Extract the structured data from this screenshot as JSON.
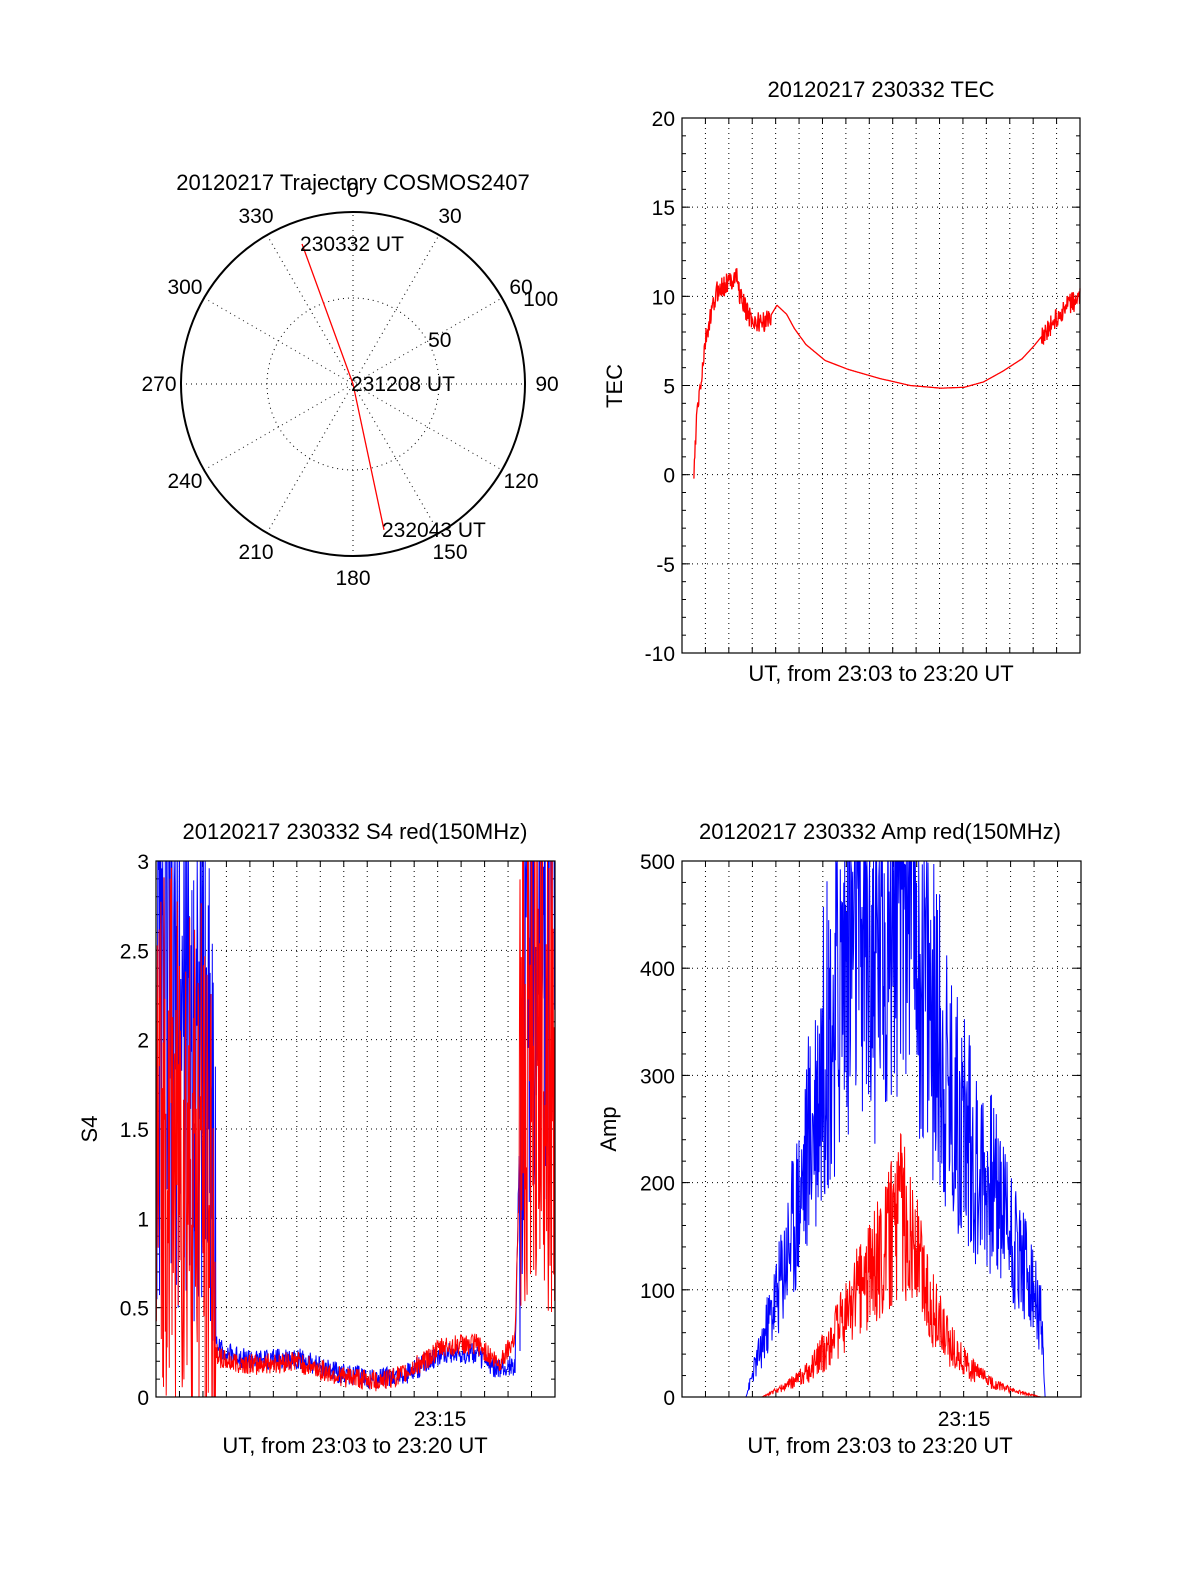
{
  "chart_data": [
    {
      "type": "polar",
      "title": "20120217 Trajectory COSMOS2407",
      "angle_labels": [
        "0",
        "30",
        "60",
        "90",
        "120",
        "150",
        "180",
        "210",
        "240",
        "270",
        "300",
        "330"
      ],
      "radius_labels": [
        "50",
        "100"
      ],
      "rlim": [
        0,
        100
      ],
      "grid": true,
      "series": [
        {
          "color": "#ff0000",
          "points": [
            {
              "azimuth": 340,
              "elevation": 12
            },
            {
              "azimuth": 90,
              "elevation": 90
            },
            {
              "azimuth": 168,
              "elevation": 12
            }
          ]
        }
      ],
      "annotations": [
        {
          "text": "230332 UT",
          "azimuth": 340,
          "elevation": 12
        },
        {
          "text": "231208 UT",
          "azimuth": 90,
          "elevation": 90
        },
        {
          "text": "232043 UT",
          "azimuth": 168,
          "elevation": 12
        }
      ]
    },
    {
      "type": "line",
      "title": "20120217 230332 TEC",
      "xlabel": "UT, from 23:03 to 23:20 UT",
      "ylabel": "TEC",
      "ylim": [
        -10,
        20
      ],
      "yticks": [
        "-10",
        "-5",
        "0",
        "5",
        "10",
        "15",
        "20"
      ],
      "grid": true,
      "series": [
        {
          "color": "#ff0000",
          "x": [
            0.0,
            0.008,
            0.02,
            0.03,
            0.045,
            0.06,
            0.075,
            0.09,
            0.11,
            0.12,
            0.14,
            0.16,
            0.19,
            0.215,
            0.24,
            0.26,
            0.29,
            0.34,
            0.4,
            0.48,
            0.56,
            0.64,
            0.7,
            0.75,
            0.8,
            0.85,
            0.88,
            0.91,
            0.94,
            0.97,
            1.0
          ],
          "y": [
            0.0,
            3.5,
            5.5,
            7.5,
            9.0,
            10.3,
            10.5,
            10.8,
            11.2,
            10.0,
            9.0,
            8.5,
            8.6,
            9.5,
            9.0,
            8.2,
            7.3,
            6.4,
            5.9,
            5.4,
            5.0,
            4.85,
            4.9,
            5.2,
            5.8,
            6.5,
            7.2,
            8.0,
            8.8,
            9.5,
            9.9
          ]
        }
      ]
    },
    {
      "type": "line",
      "title": "20120217 230332 S4 red(150MHz)",
      "xlabel": "UT, from 23:03 to 23:20 UT",
      "ylabel": "S4",
      "ylim": [
        0,
        3
      ],
      "yticks": [
        "0",
        "0.5",
        "1",
        "1.5",
        "2",
        "2.5",
        "3"
      ],
      "xticklabel": "23:15",
      "grid": true,
      "series": [
        {
          "color": "#0000ff",
          "x": [
            0.0,
            0.02,
            0.05,
            0.1,
            0.14,
            0.15,
            0.17,
            0.25,
            0.35,
            0.45,
            0.55,
            0.62,
            0.72,
            0.8,
            0.86,
            0.9,
            0.92,
            0.95,
            1.0
          ],
          "y": [
            2.0,
            2.2,
            2.1,
            2.0,
            1.8,
            0.3,
            0.25,
            0.2,
            0.22,
            0.14,
            0.1,
            0.12,
            0.25,
            0.24,
            0.15,
            0.18,
            2.5,
            2.7,
            2.7
          ]
        },
        {
          "color": "#ff0000",
          "x": [
            0.0,
            0.02,
            0.05,
            0.1,
            0.14,
            0.15,
            0.17,
            0.25,
            0.35,
            0.45,
            0.55,
            0.62,
            0.72,
            0.8,
            0.86,
            0.9,
            0.92,
            0.95,
            1.0
          ],
          "y": [
            1.2,
            1.6,
            1.4,
            1.3,
            1.0,
            0.25,
            0.2,
            0.18,
            0.2,
            0.12,
            0.09,
            0.12,
            0.28,
            0.3,
            0.18,
            0.35,
            2.0,
            2.3,
            1.8
          ]
        }
      ]
    },
    {
      "type": "line",
      "title": "20120217 230332 Amp red(150MHz)",
      "xlabel": "UT, from 23:03 to 23:20 UT",
      "ylabel": "Amp",
      "ylim": [
        0,
        500
      ],
      "yticks": [
        "0",
        "100",
        "200",
        "300",
        "400",
        "500"
      ],
      "xticklabel": "23:15",
      "grid": true,
      "series": [
        {
          "color": "#0000ff",
          "x": [
            0.0,
            0.16,
            0.19,
            0.24,
            0.3,
            0.36,
            0.42,
            0.48,
            0.55,
            0.58,
            0.62,
            0.68,
            0.74,
            0.8,
            0.86,
            0.9,
            0.91,
            1.0
          ],
          "y": [
            0,
            0,
            30,
            80,
            160,
            270,
            350,
            340,
            420,
            390,
            300,
            220,
            180,
            150,
            100,
            60,
            0,
            0
          ]
        },
        {
          "color": "#ff0000",
          "x": [
            0.0,
            0.2,
            0.26,
            0.32,
            0.38,
            0.44,
            0.5,
            0.55,
            0.58,
            0.62,
            0.66,
            0.72,
            0.78,
            0.84,
            0.9,
            1.0
          ],
          "y": [
            0,
            0,
            8,
            20,
            45,
            80,
            110,
            140,
            120,
            75,
            45,
            22,
            10,
            4,
            0,
            0
          ]
        }
      ]
    }
  ]
}
